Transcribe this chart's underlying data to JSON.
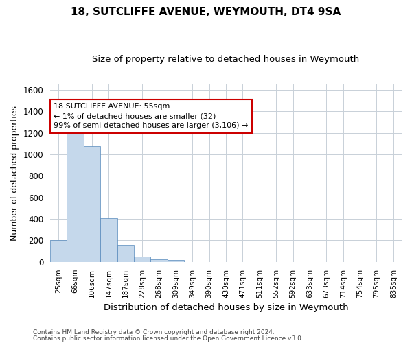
{
  "title": "18, SUTCLIFFE AVENUE, WEYMOUTH, DT4 9SA",
  "subtitle": "Size of property relative to detached houses in Weymouth",
  "xlabel": "Distribution of detached houses by size in Weymouth",
  "ylabel": "Number of detached properties",
  "categories": [
    "25sqm",
    "66sqm",
    "106sqm",
    "147sqm",
    "187sqm",
    "228sqm",
    "268sqm",
    "309sqm",
    "349sqm",
    "390sqm",
    "430sqm",
    "471sqm",
    "511sqm",
    "552sqm",
    "592sqm",
    "633sqm",
    "673sqm",
    "714sqm",
    "754sqm",
    "795sqm",
    "835sqm"
  ],
  "values": [
    205,
    1230,
    1075,
    410,
    160,
    50,
    25,
    20,
    0,
    0,
    0,
    0,
    0,
    0,
    0,
    0,
    0,
    0,
    0,
    0,
    0
  ],
  "bar_color": "#c5d8eb",
  "bar_edge_color": "#5588bb",
  "ylim": [
    0,
    1650
  ],
  "yticks": [
    0,
    200,
    400,
    600,
    800,
    1000,
    1200,
    1400,
    1600
  ],
  "annotation_line1": "18 SUTCLIFFE AVENUE: 55sqm",
  "annotation_line2": "← 1% of detached houses are smaller (32)",
  "annotation_line3": "99% of semi-detached houses are larger (3,106) →",
  "annotation_box_color": "#ffffff",
  "annotation_box_edge": "#cc0000",
  "footnote1": "Contains HM Land Registry data © Crown copyright and database right 2024.",
  "footnote2": "Contains public sector information licensed under the Open Government Licence v3.0.",
  "bg_color": "#ffffff",
  "grid_color": "#c8d0d8",
  "title_fontsize": 11,
  "subtitle_fontsize": 9.5,
  "ylabel_fontsize": 9,
  "xlabel_fontsize": 9.5
}
